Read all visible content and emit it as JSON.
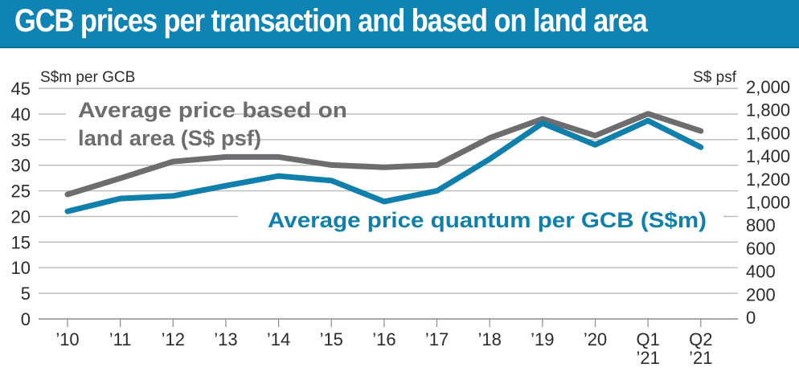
{
  "header": {
    "title": "GCB prices per transaction and based on land area"
  },
  "colors": {
    "header_bg": "#0e84b4",
    "psf_line": "#6d6d70",
    "quantum_line": "#0f7fac",
    "grid": "#b9b9b9",
    "axis_text": "#2b2b2b"
  },
  "chart_data": {
    "type": "line",
    "title": "GCB prices per transaction and based on land area",
    "categories": [
      "'10",
      "'11",
      "'12",
      "'13",
      "'14",
      "'15",
      "'16",
      "'17",
      "'18",
      "'19",
      "'20",
      "Q1 '21",
      "Q2 '21"
    ],
    "category_labels": [
      [
        "’10"
      ],
      [
        "’11"
      ],
      [
        "’12"
      ],
      [
        "’13"
      ],
      [
        "’14"
      ],
      [
        "’15"
      ],
      [
        "’16"
      ],
      [
        "’17"
      ],
      [
        "’18"
      ],
      [
        "’19"
      ],
      [
        "’20"
      ],
      [
        "Q1",
        "’21"
      ],
      [
        "Q2",
        "’21"
      ]
    ],
    "left_axis": {
      "label": "S$m per GCB",
      "ylim": [
        0,
        45
      ],
      "ticks": [
        0,
        5,
        10,
        15,
        20,
        25,
        30,
        35,
        40,
        45
      ],
      "tick_labels": [
        "0",
        "5",
        "10",
        "15",
        "20",
        "25",
        "30",
        "35",
        "40",
        "45"
      ]
    },
    "right_axis": {
      "label": "S$ psf",
      "ylim": [
        0,
        2000
      ],
      "ticks": [
        0,
        200,
        400,
        600,
        800,
        1000,
        1200,
        1400,
        1600,
        1800,
        2000
      ],
      "tick_labels": [
        "0",
        "200",
        "400",
        "600",
        "800",
        "1,000",
        "1,200",
        "1,400",
        "1,600",
        "1,800",
        "2,000"
      ]
    },
    "series": [
      {
        "name": "Average price based on land area (S$ psf)",
        "label_lines": [
          "Average price based on",
          "land area (S$ psf)"
        ],
        "axis": "right",
        "color": "#6d6d70",
        "values": [
          1080,
          1220,
          1365,
          1405,
          1405,
          1335,
          1315,
          1335,
          1570,
          1735,
          1590,
          1780,
          1630
        ]
      },
      {
        "name": "Average price quantum per GCB (S$m)",
        "label_lines": [
          "Average price quantum per GCB (S$m)"
        ],
        "axis": "left",
        "color": "#0f7fac",
        "values": [
          21.0,
          23.5,
          24.0,
          26.0,
          27.9,
          27.0,
          22.9,
          25.0,
          31.2,
          38.2,
          34.0,
          38.7,
          33.5
        ]
      }
    ],
    "grid": true,
    "legend": "inline annotations"
  }
}
